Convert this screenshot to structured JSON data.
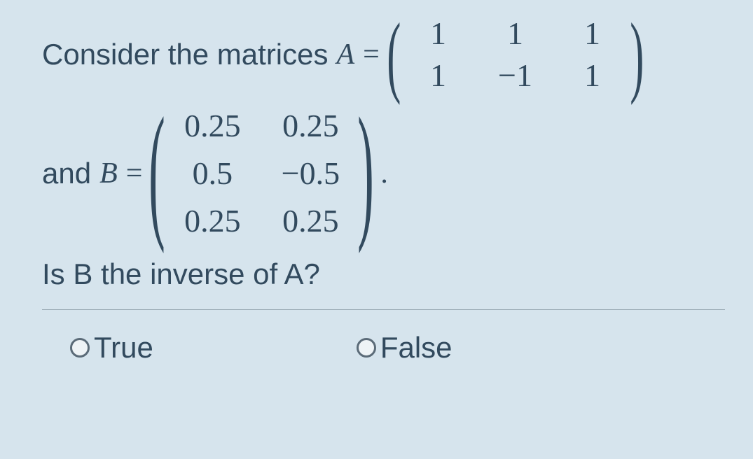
{
  "question": {
    "line1_prefix": "Consider the matrices ",
    "var_A": "A",
    "eq": " = ",
    "matrix_A": {
      "rows": [
        [
          "1",
          "1",
          "1"
        ],
        [
          "1",
          "−1",
          "1"
        ]
      ]
    },
    "line2_prefix": "and ",
    "var_B": "B",
    "matrix_B": {
      "rows": [
        [
          "0.25",
          "0.25"
        ],
        [
          "0.5",
          "−0.5"
        ],
        [
          "0.25",
          "0.25"
        ]
      ]
    },
    "line2_suffix": ".",
    "ask": "Is B the inverse of A?"
  },
  "options": {
    "true_label": "True",
    "false_label": "False"
  },
  "style": {
    "background": "#d6e4ed",
    "text_color": "#324a5e",
    "font_size_body": 42,
    "font_size_matrix": 46,
    "radio_border": "#5b6b78",
    "separator_color": "#9aaab5"
  }
}
